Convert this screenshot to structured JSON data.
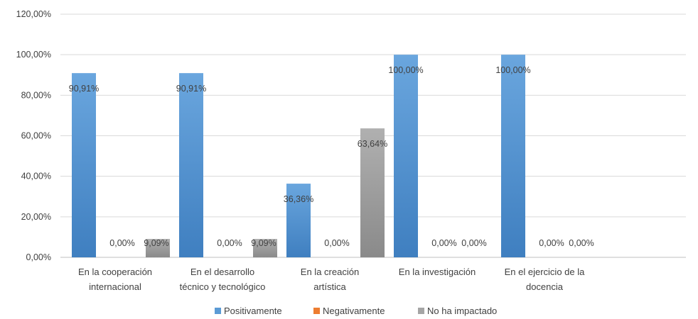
{
  "chart_data": {
    "type": "bar",
    "categories": [
      [
        "En la cooperación",
        "internacional"
      ],
      [
        "En el desarrollo",
        "técnico y tecnológico"
      ],
      [
        "En la creación",
        "artística"
      ],
      [
        "En la investigación"
      ],
      [
        "En el ejercicio de la",
        "docencia"
      ]
    ],
    "series": [
      {
        "name": "Positivamente",
        "color": "#5B9BD5",
        "values": [
          90.91,
          90.91,
          36.36,
          100,
          100
        ],
        "labels": [
          "90,91%",
          "90,91%",
          "36,36%",
          "100,00%",
          "100,00%"
        ]
      },
      {
        "name": "Negativamente",
        "color": "#ED7D31",
        "values": [
          0,
          0,
          0,
          0,
          0
        ],
        "labels": [
          "0,00%",
          "0,00%",
          "0,00%",
          "0,00%",
          "0,00%"
        ]
      },
      {
        "name": "No ha impactado",
        "color": "#A5A5A5",
        "values": [
          9.09,
          9.09,
          63.64,
          0,
          0
        ],
        "labels": [
          "9,09%",
          "9,09%",
          "63,64%",
          "0,00%",
          "0,00%"
        ]
      }
    ],
    "ylim": [
      0,
      120
    ],
    "yticks": [
      "0,00%",
      "20,00%",
      "40,00%",
      "60,00%",
      "80,00%",
      "100,00%",
      "120,00%"
    ],
    "grid": true,
    "legend_position": "bottom"
  }
}
